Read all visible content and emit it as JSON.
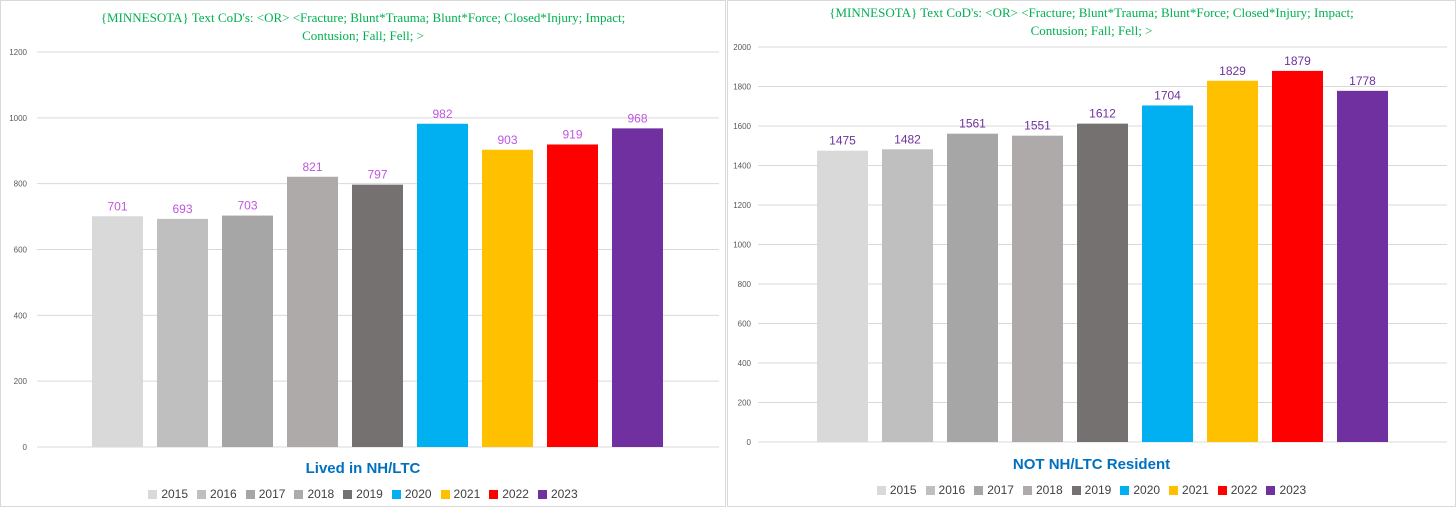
{
  "chart_data": [
    {
      "type": "bar",
      "title": "{MINNESOTA}   Text CoD's: <OR> <Fracture;  Blunt*Trauma;  Blunt*Force;  Closed*Injury;  Impact;\nContusion;  Fall;  Fell;  >",
      "subtitle": "Lived in NH/LTC",
      "categories": [
        "2015",
        "2016",
        "2017",
        "2018",
        "2019",
        "2020",
        "2021",
        "2022",
        "2023"
      ],
      "values": [
        701,
        693,
        703,
        821,
        797,
        982,
        903,
        919,
        968
      ],
      "colors": [
        "#d9d9d9",
        "#bfbfbf",
        "#a6a6a6",
        "#aeaaaa",
        "#767171",
        "#00b0f0",
        "#ffc000",
        "#ff0000",
        "#7030a0"
      ],
      "ylim": [
        0,
        1200
      ],
      "yticks": [
        0,
        200,
        400,
        600,
        800,
        1000,
        1200
      ],
      "label_color": "#c055e0",
      "legend_position": "bottom"
    },
    {
      "type": "bar",
      "title": "{MINNESOTA}   Text CoD's: <OR> <Fracture;  Blunt*Trauma;  Blunt*Force;  Closed*Injury;  Impact;\nContusion;  Fall;  Fell;  >",
      "subtitle": "NOT NH/LTC Resident",
      "categories": [
        "2015",
        "2016",
        "2017",
        "2018",
        "2019",
        "2020",
        "2021",
        "2022",
        "2023"
      ],
      "values": [
        1475,
        1482,
        1561,
        1551,
        1612,
        1704,
        1829,
        1879,
        1778
      ],
      "colors": [
        "#d9d9d9",
        "#bfbfbf",
        "#a6a6a6",
        "#aeaaaa",
        "#767171",
        "#00b0f0",
        "#ffc000",
        "#ff0000",
        "#7030a0"
      ],
      "ylim": [
        0,
        2000
      ],
      "yticks": [
        0,
        200,
        400,
        600,
        800,
        1000,
        1200,
        1400,
        1600,
        1800,
        2000
      ],
      "label_color": "#7030a0",
      "legend_position": "bottom"
    }
  ]
}
